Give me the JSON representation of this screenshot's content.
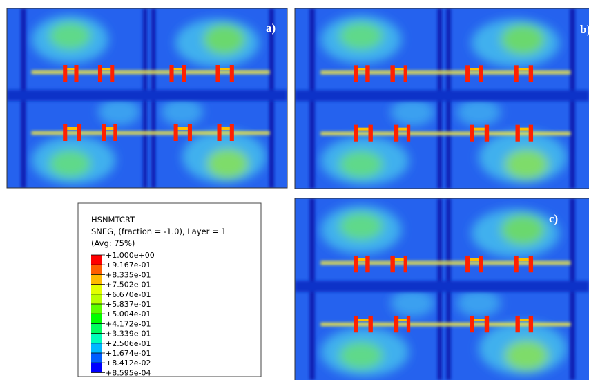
{
  "panels": [
    {
      "label": "a)"
    },
    {
      "label": "b)"
    },
    {
      "label": "c)"
    }
  ],
  "legend": {
    "title": "HSNMTCRT",
    "subtitle": "SNEG, (fraction = -1.0), Layer = 1",
    "note": "(Avg: 75%)",
    "labels": [
      "+1.000e+00",
      "+9.167e-01",
      "+8.335e-01",
      "+7.502e-01",
      "+6.670e-01",
      "+5.837e-01",
      "+5.004e-01",
      "+4.172e-01",
      "+3.339e-01",
      "+2.506e-01",
      "+1.674e-01",
      "+8.412e-02",
      "+8.595e-04"
    ],
    "colors": [
      "#ff0000",
      "#ff5d00",
      "#ffb900",
      "#e3ff00",
      "#b9ff00",
      "#5dff00",
      "#00ff00",
      "#00ff5d",
      "#00ffb9",
      "#00b9ff",
      "#005dff",
      "#0000ff"
    ]
  }
}
